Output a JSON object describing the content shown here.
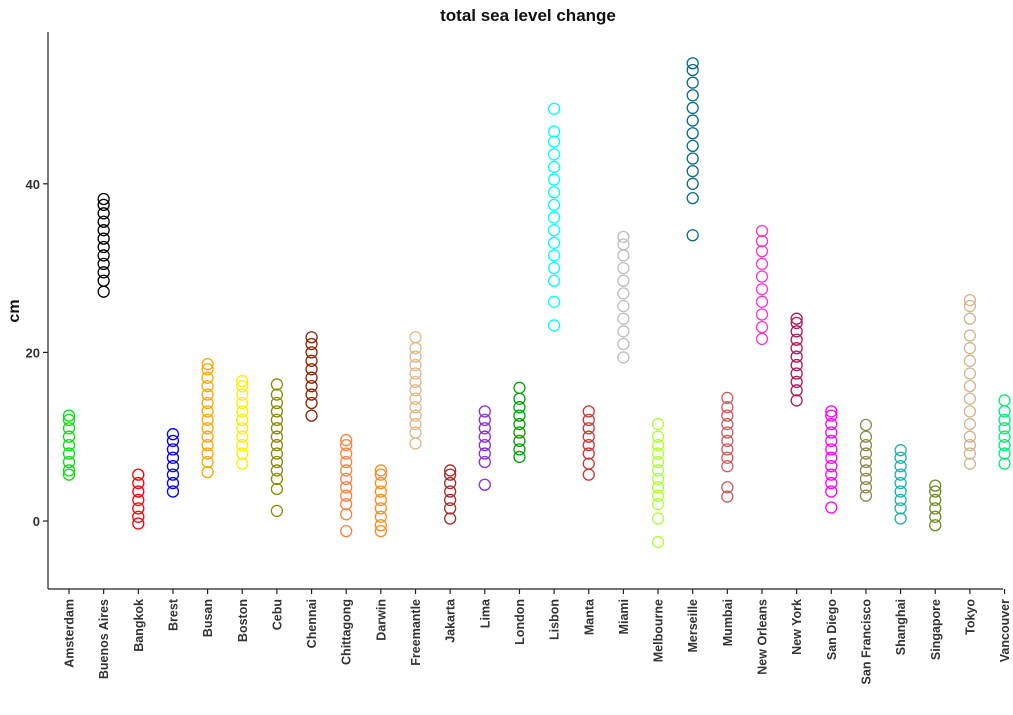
{
  "chart_data": {
    "type": "scatter",
    "title": "total sea level change",
    "xlabel": "",
    "ylabel": "cm",
    "ylim": [
      -8,
      58
    ],
    "yticks": [
      0,
      20,
      40
    ],
    "grid": false,
    "legend": "none",
    "categories": [
      "Amsterdam",
      "Buenos Aires",
      "Bangkok",
      "Brest",
      "Busan",
      "Boston",
      "Cebu",
      "Chennai",
      "Chittagong",
      "Darwin",
      "Freemantle",
      "Jakarta",
      "Lima",
      "London",
      "Lisbon",
      "Manta",
      "Miami",
      "Melbourne",
      "Merseille",
      "Mumbai",
      "New Orleans",
      "New York",
      "San Diego",
      "San Francisco",
      "Shanghai",
      "Singapore",
      "Tokyo",
      "Vancouver"
    ],
    "colors": [
      "#00e600",
      "#000000",
      "#ff0000",
      "#0000ff",
      "#ffa500",
      "#ffee00",
      "#8b8b00",
      "#8b2500",
      "#ff7f3f",
      "#ff8c1a",
      "#deb887",
      "#a52a2a",
      "#8a2be2",
      "#00a000",
      "#00ffff",
      "#cd3333",
      "#bebebe",
      "#adff2f",
      "#0a6a8a",
      "#cd5c5c",
      "#ff33cc",
      "#b0185c",
      "#ff00ff",
      "#8b8b4c",
      "#20b2aa",
      "#6b8e23",
      "#d2b48c",
      "#00ee76"
    ],
    "series": [
      {
        "values": [
          5.5,
          6,
          7,
          8,
          9,
          10,
          11,
          12,
          12.5
        ]
      },
      {
        "values": [
          27.2,
          28.5,
          29.5,
          30.5,
          31.5,
          32.5,
          33.5,
          34.5,
          35.5,
          36.5,
          37.5,
          38.2
        ]
      },
      {
        "values": [
          -0.3,
          0.5,
          1.5,
          2.5,
          3.5,
          4.5,
          5.5
        ]
      },
      {
        "values": [
          3.5,
          4.5,
          5.5,
          6.5,
          7.5,
          8.5,
          9.5,
          10.3
        ]
      },
      {
        "values": [
          5.8,
          7,
          8,
          9,
          10,
          11,
          12,
          13,
          14,
          15,
          16,
          17,
          18,
          18.6
        ]
      },
      {
        "values": [
          6.8,
          8,
          9,
          10,
          11,
          12,
          13,
          14,
          15,
          16,
          16.6
        ]
      },
      {
        "values": [
          1.2,
          3.8,
          5,
          6,
          7,
          8,
          9,
          10,
          11,
          12,
          13,
          14,
          15,
          16.2
        ]
      },
      {
        "values": [
          12.5,
          14,
          15,
          16,
          17,
          18,
          19,
          20,
          21,
          21.8
        ]
      },
      {
        "values": [
          -1.2,
          0.8,
          2,
          3,
          4,
          5,
          6,
          7,
          8,
          9,
          9.6
        ]
      },
      {
        "values": [
          -1.2,
          -0.5,
          0.5,
          1.5,
          2.5,
          3.5,
          4.5,
          5.5,
          6
        ]
      },
      {
        "values": [
          9.2,
          10.5,
          11.5,
          12.5,
          13.5,
          14.5,
          15.5,
          16.5,
          17.5,
          18.5,
          19.5,
          20.5,
          21.8
        ]
      },
      {
        "values": [
          0.3,
          1.5,
          2.5,
          3.5,
          4.5,
          5.5,
          6
        ]
      },
      {
        "values": [
          4.3,
          7,
          8,
          9,
          10,
          11,
          12,
          13
        ]
      },
      {
        "values": [
          7.6,
          8.5,
          9.5,
          10.5,
          11.5,
          12.5,
          13.5,
          14.5,
          15.8
        ]
      },
      {
        "values": [
          23.2,
          26,
          28.5,
          30,
          31.5,
          33,
          34.5,
          36,
          37.5,
          39,
          40.5,
          42,
          43.5,
          45,
          46.2,
          48.9
        ]
      },
      {
        "values": [
          5.5,
          6.8,
          8,
          9,
          10,
          11,
          12,
          13
        ]
      },
      {
        "values": [
          19.4,
          21,
          22.5,
          24,
          25.5,
          27,
          28.5,
          30,
          31.5,
          32.8,
          33.7
        ]
      },
      {
        "values": [
          -2.5,
          0.3,
          2,
          3,
          4,
          5,
          6,
          7,
          8,
          9,
          10,
          11.5
        ]
      },
      {
        "values": [
          33.9,
          38.3,
          40,
          41.5,
          43,
          44.5,
          46,
          47.5,
          49,
          50.5,
          52,
          53.5,
          54.3
        ]
      },
      {
        "values": [
          2.9,
          4,
          6.5,
          7.5,
          8.5,
          9.5,
          10.5,
          11.5,
          12.5,
          13.5,
          14.6
        ]
      },
      {
        "values": [
          21.6,
          23,
          24.5,
          26,
          27.5,
          29,
          30.5,
          32,
          33.2,
          34.4
        ]
      },
      {
        "values": [
          14.3,
          15.5,
          16.5,
          17.5,
          18.5,
          19.5,
          20.5,
          21.5,
          22.5,
          23.5,
          24
        ]
      },
      {
        "values": [
          1.6,
          3.5,
          4.5,
          5.5,
          6.5,
          7.5,
          8.5,
          9.5,
          10.5,
          11.5,
          12.5,
          13
        ]
      },
      {
        "values": [
          3,
          4,
          5,
          6,
          7,
          8,
          9,
          10,
          11.4
        ]
      },
      {
        "values": [
          0.3,
          1.5,
          2.5,
          3.5,
          4.5,
          5.5,
          6.5,
          7.5,
          8.4
        ]
      },
      {
        "values": [
          -0.5,
          0.5,
          1.5,
          2.5,
          3.5,
          4.2
        ]
      },
      {
        "values": [
          6.8,
          8,
          9,
          10,
          11.5,
          13,
          14.5,
          16,
          17.5,
          19,
          20.5,
          22,
          24,
          25.5,
          26.2
        ]
      },
      {
        "values": [
          6.8,
          8,
          9,
          10,
          11,
          12,
          13,
          14.3
        ]
      }
    ]
  }
}
